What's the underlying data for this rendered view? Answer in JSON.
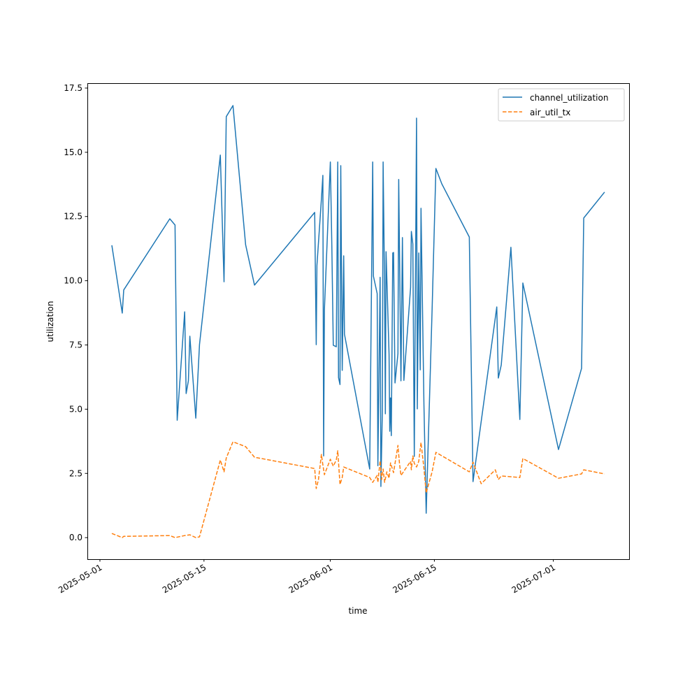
{
  "chart_data": {
    "type": "line",
    "title": "",
    "xlabel": "time",
    "ylabel": "utilization",
    "x_unit": "days since 2025-05-01",
    "xlim": [
      -1.69,
      71.2
    ],
    "ylim": [
      -0.84,
      17.69
    ],
    "xticks": [
      {
        "value": 0,
        "label": "2025-05-01"
      },
      {
        "value": 14,
        "label": "2025-05-15"
      },
      {
        "value": 31,
        "label": "2025-06-01"
      },
      {
        "value": 45,
        "label": "2025-06-15"
      },
      {
        "value": 61,
        "label": "2025-07-01"
      }
    ],
    "yticks": [
      {
        "value": 0,
        "label": "0.0"
      },
      {
        "value": 2.5,
        "label": "2.5"
      },
      {
        "value": 5,
        "label": "5.0"
      },
      {
        "value": 7.5,
        "label": "7.5"
      },
      {
        "value": 10,
        "label": "10.0"
      },
      {
        "value": 12.5,
        "label": "12.5"
      },
      {
        "value": 15,
        "label": "15.0"
      },
      {
        "value": 17.5,
        "label": "17.5"
      }
    ],
    "grid": false,
    "legend_position": "top-right",
    "series": [
      {
        "name": "channel_utilization",
        "color": "#1f77b4",
        "style": "solid",
        "x": [
          1.6,
          3.0,
          3.2,
          9.4,
          10.1,
          10.4,
          11.4,
          11.6,
          11.9,
          12.1,
          12.9,
          13.4,
          16.2,
          16.7,
          17.0,
          17.9,
          19.6,
          20.8,
          28.9,
          29.1,
          29.2,
          29.8,
          30.0,
          30.1,
          30.2,
          31.0,
          31.2,
          31.4,
          31.8,
          32.0,
          32.1,
          32.3,
          32.4,
          32.6,
          32.8,
          32.9,
          36.3,
          36.7,
          36.8,
          37.3,
          37.4,
          37.7,
          37.8,
          38.0,
          38.1,
          38.3,
          38.4,
          38.5,
          38.9,
          39.0,
          39.1,
          39.2,
          39.4,
          39.5,
          39.7,
          40.1,
          40.2,
          40.5,
          40.7,
          40.9,
          41.8,
          41.9,
          42.1,
          42.3,
          42.6,
          42.7,
          42.9,
          43.1,
          43.2,
          43.6,
          43.9,
          44.7,
          45.2,
          46.0,
          49.7,
          50.2,
          53.4,
          53.6,
          54.0,
          55.3,
          56.5,
          56.9,
          61.7,
          64.8,
          65.1,
          67.9
        ],
        "y": [
          11.38,
          8.74,
          9.64,
          12.41,
          12.17,
          4.57,
          8.79,
          5.61,
          6.1,
          7.84,
          4.65,
          7.51,
          14.89,
          9.96,
          16.39,
          16.82,
          11.4,
          9.83,
          12.66,
          7.51,
          10.59,
          13.17,
          14.1,
          3.18,
          8.87,
          14.62,
          11.4,
          7.49,
          7.43,
          14.62,
          6.23,
          5.96,
          14.48,
          6.51,
          10.97,
          7.92,
          2.67,
          14.62,
          10.18,
          9.5,
          2.8,
          10.13,
          1.99,
          4.93,
          14.62,
          9.69,
          4.82,
          11.13,
          7.13,
          4.14,
          5.44,
          3.97,
          11.08,
          11.1,
          6.02,
          7.16,
          13.94,
          6.1,
          11.68,
          6.12,
          9.74,
          11.92,
          11.43,
          3.16,
          16.33,
          5.01,
          11.08,
          6.53,
          12.82,
          5.17,
          0.95,
          8.9,
          14.37,
          13.77,
          11.7,
          2.18,
          8.98,
          6.21,
          6.72,
          11.3,
          4.6,
          9.91,
          3.43,
          6.59,
          12.44,
          13.45
        ]
      },
      {
        "name": "air_util_tx",
        "color": "#ff7f0e",
        "style": "dashed",
        "x": [
          1.6,
          3.0,
          3.2,
          9.4,
          10.1,
          11.4,
          12.1,
          12.9,
          13.4,
          16.2,
          16.7,
          17.0,
          17.9,
          19.6,
          20.8,
          28.9,
          29.1,
          29.4,
          29.8,
          30.0,
          30.2,
          31.0,
          31.4,
          31.8,
          32.0,
          32.3,
          32.6,
          32.8,
          36.3,
          36.7,
          37.3,
          37.4,
          37.7,
          37.9,
          38.1,
          38.3,
          38.6,
          38.9,
          39.1,
          39.5,
          40.1,
          40.3,
          40.5,
          41.8,
          41.9,
          42.1,
          42.3,
          42.6,
          42.9,
          43.2,
          43.6,
          43.9,
          44.7,
          45.2,
          49.7,
          50.2,
          51.3,
          53.2,
          53.6,
          54.0,
          56.5,
          56.9,
          61.7,
          64.8,
          65.1,
          67.9
        ],
        "y": [
          0.16,
          0,
          0.05,
          0.08,
          0,
          0.08,
          0.11,
          0,
          0.03,
          3.02,
          2.56,
          3.1,
          3.73,
          3.54,
          3.13,
          2.69,
          1.91,
          2.26,
          3.24,
          2.83,
          2.45,
          3.05,
          2.78,
          3.02,
          3.38,
          2.07,
          2.34,
          2.75,
          2.34,
          2.15,
          2.42,
          2.15,
          2.99,
          2.26,
          2.67,
          2.15,
          2.56,
          2.31,
          2.91,
          2.53,
          3.59,
          2.89,
          2.42,
          2.97,
          2.64,
          3.18,
          2.89,
          2.75,
          2.97,
          3.7,
          2.69,
          1.74,
          2.56,
          3.32,
          2.56,
          2.94,
          2.1,
          2.64,
          2.26,
          2.4,
          2.34,
          3.08,
          2.31,
          2.48,
          2.64,
          2.48
        ]
      }
    ]
  }
}
